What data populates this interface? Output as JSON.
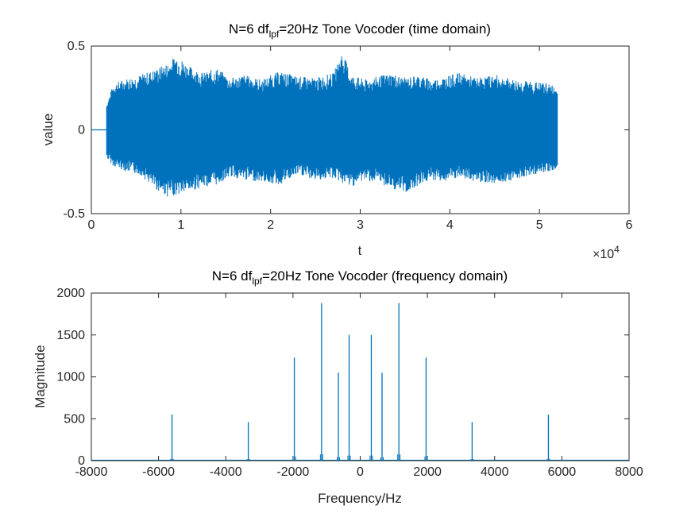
{
  "colors": {
    "series": "#0072BD",
    "axis": "#262626",
    "background": "#ffffff"
  },
  "chart_data": [
    {
      "type": "line",
      "title_parts": {
        "before": "N=6 df",
        "subscript": "lpf",
        "after": "=20Hz Tone Vocoder (time domain)"
      },
      "xlabel": "t",
      "ylabel": "value",
      "xlim": [
        0,
        60000
      ],
      "ylim": [
        -0.5,
        0.5
      ],
      "xticks": [
        0,
        10000,
        20000,
        30000,
        40000,
        50000,
        60000
      ],
      "xtick_labels": [
        "0",
        "1",
        "2",
        "3",
        "4",
        "5",
        "6"
      ],
      "x_exponent_label": {
        "base": "×10",
        "exponent": "4"
      },
      "yticks": [
        -0.5,
        0,
        0.5
      ],
      "ytick_labels": [
        "-0.5",
        "0",
        "0.5"
      ],
      "series": [
        {
          "signal_start": 1700,
          "signal_end": 52000,
          "x": [
            1700,
            2500,
            4000,
            5500,
            7000,
            8500,
            9500,
            11000,
            12500,
            14000,
            15500,
            17000,
            19000,
            21000,
            23000,
            25000,
            27000,
            28000,
            29000,
            30500,
            32000,
            33500,
            35000,
            36500,
            38000,
            39500,
            41000,
            43000,
            45000,
            47000,
            49000,
            51000,
            52000
          ],
          "upper": [
            0.16,
            0.28,
            0.31,
            0.33,
            0.36,
            0.4,
            0.45,
            0.38,
            0.34,
            0.37,
            0.31,
            0.33,
            0.3,
            0.35,
            0.32,
            0.31,
            0.34,
            0.47,
            0.33,
            0.3,
            0.32,
            0.34,
            0.31,
            0.33,
            0.3,
            0.32,
            0.34,
            0.31,
            0.33,
            0.3,
            0.29,
            0.28,
            0.25
          ],
          "lower": [
            -0.17,
            -0.22,
            -0.25,
            -0.27,
            -0.35,
            -0.4,
            -0.39,
            -0.37,
            -0.34,
            -0.33,
            -0.28,
            -0.3,
            -0.31,
            -0.33,
            -0.27,
            -0.3,
            -0.29,
            -0.32,
            -0.34,
            -0.3,
            -0.32,
            -0.35,
            -0.38,
            -0.33,
            -0.3,
            -0.31,
            -0.29,
            -0.31,
            -0.32,
            -0.3,
            -0.27,
            -0.25,
            -0.24
          ]
        }
      ]
    },
    {
      "type": "line",
      "title_parts": {
        "before": "N=6 df",
        "subscript": "lpf",
        "after": "=20Hz Tone Vocoder (frequency domain)"
      },
      "xlabel": "Frequency/Hz",
      "ylabel": "Magnitude",
      "xlim": [
        -8000,
        8000
      ],
      "ylim": [
        0,
        2000
      ],
      "xticks": [
        -8000,
        -6000,
        -4000,
        -2000,
        0,
        2000,
        4000,
        6000,
        8000
      ],
      "xtick_labels": [
        "-8000",
        "-6000",
        "-4000",
        "-2000",
        "0",
        "2000",
        "4000",
        "6000",
        "8000"
      ],
      "yticks": [
        0,
        500,
        1000,
        1500,
        2000
      ],
      "ytick_labels": [
        "0",
        "500",
        "1000",
        "1500",
        "2000"
      ],
      "series": [
        {
          "peak_freqs": [
            -5600,
            -3330,
            -1960,
            -1150,
            -650,
            -330,
            330,
            650,
            1150,
            1960,
            3330,
            5600
          ],
          "peak_mags": [
            550,
            460,
            1230,
            1880,
            1050,
            1500,
            1500,
            1050,
            1880,
            1230,
            460,
            550
          ]
        }
      ]
    }
  ]
}
